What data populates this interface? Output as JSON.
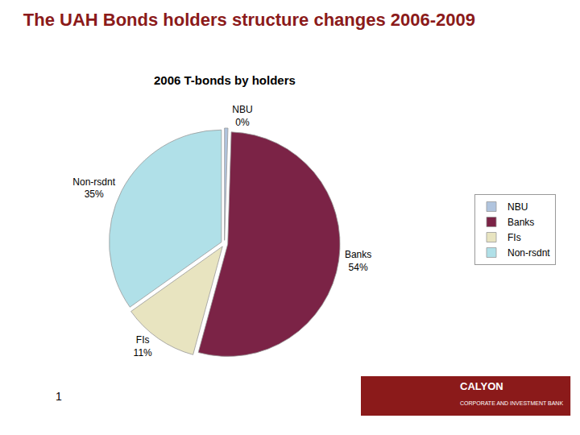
{
  "chart_data": {
    "type": "pie",
    "title": "The UAH Bonds holders structure changes 2006-2009",
    "subtitle": "2006 T-bonds by holders",
    "categories": [
      "NBU",
      "Banks",
      "FIs",
      "Non-rsdnt"
    ],
    "values": [
      0.5,
      54,
      11,
      35
    ],
    "value_labels": [
      "0%",
      "54%",
      "11%",
      "35%"
    ],
    "data_labels": true,
    "colors": [
      "#b0c4de",
      "#7b2346",
      "#e8e4c0",
      "#b0e0e8"
    ],
    "legend": "right",
    "annotations": [
      "1",
      "CALYON",
      "CORPORATE AND INVESTMENT BANK"
    ]
  }
}
